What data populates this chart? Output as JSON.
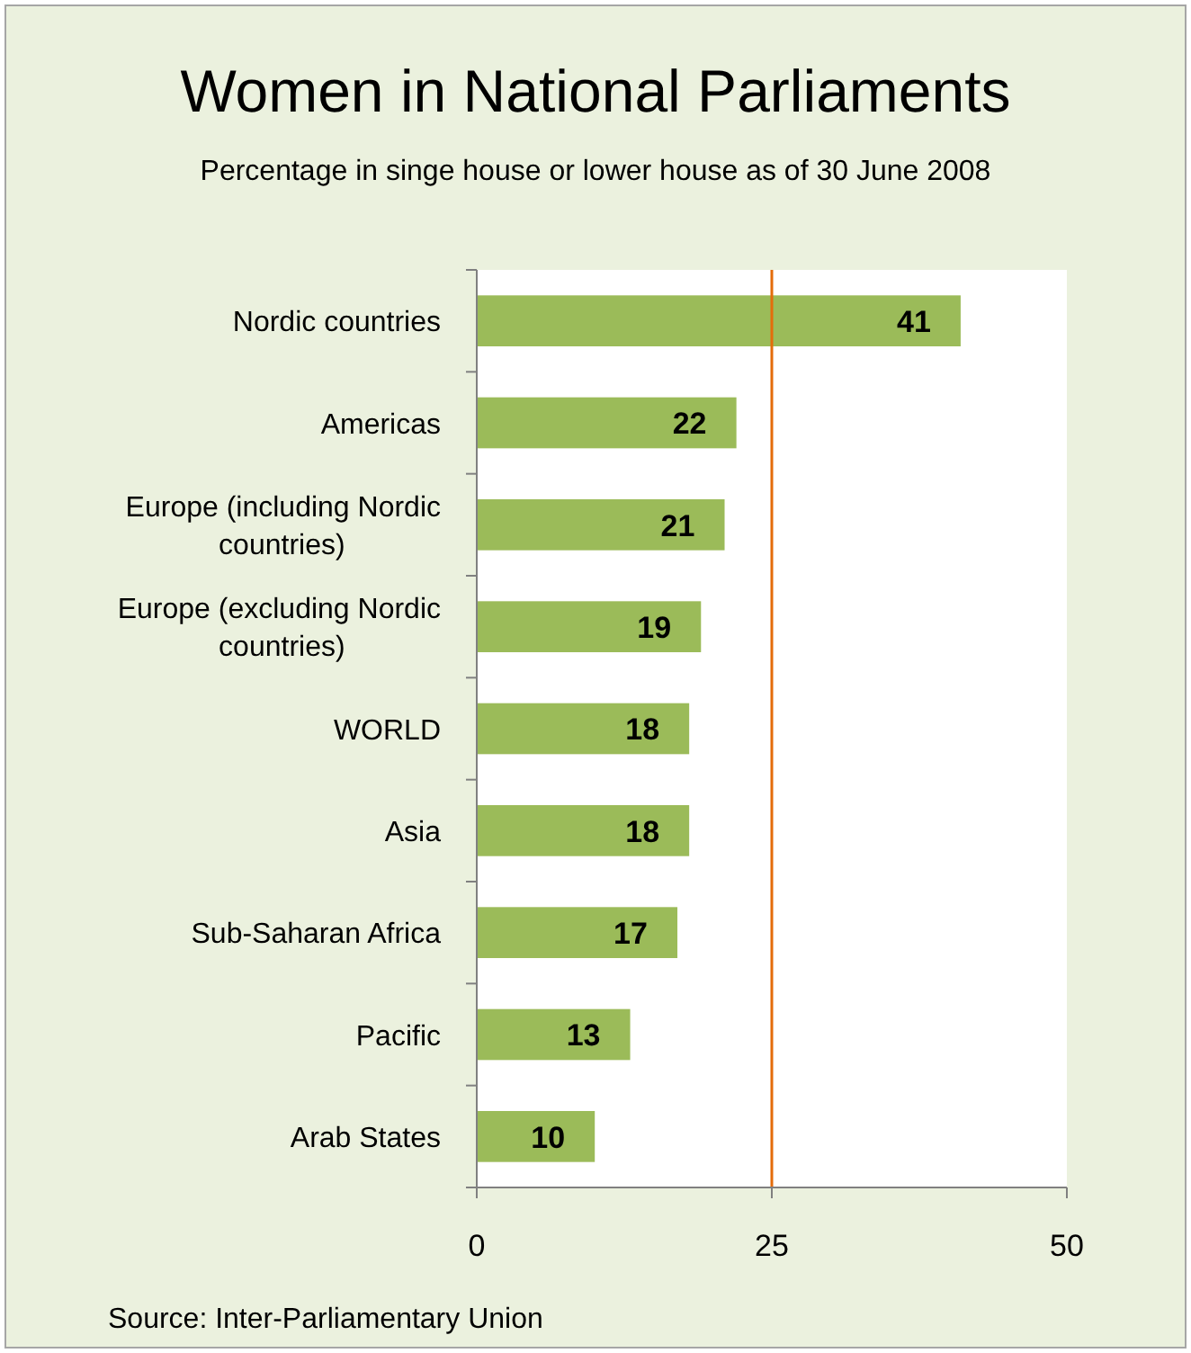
{
  "chart_data": {
    "type": "bar",
    "orientation": "horizontal",
    "title": "Women in National Parliaments",
    "subtitle": "Percentage in singe house or lower house as of 30 June 2008",
    "categories": [
      "Nordic countries",
      "Americas",
      "Europe (including Nordic countries)",
      "Europe (excluding Nordic countries)",
      "WORLD",
      "Asia",
      "Sub-Saharan Africa",
      "Pacific",
      "Arab States"
    ],
    "values": [
      41,
      22,
      21,
      19,
      18,
      18,
      17,
      13,
      10
    ],
    "color": "#9bbb59",
    "xlim": [
      0,
      50
    ],
    "xticks": [
      0,
      25,
      50
    ],
    "grid": false,
    "data_labels": true,
    "ref_lines": [
      {
        "axis": "x",
        "value": 25,
        "color": "#e46c0a"
      }
    ],
    "annotations": [
      "Source: Inter-Parliamentary Union"
    ]
  }
}
